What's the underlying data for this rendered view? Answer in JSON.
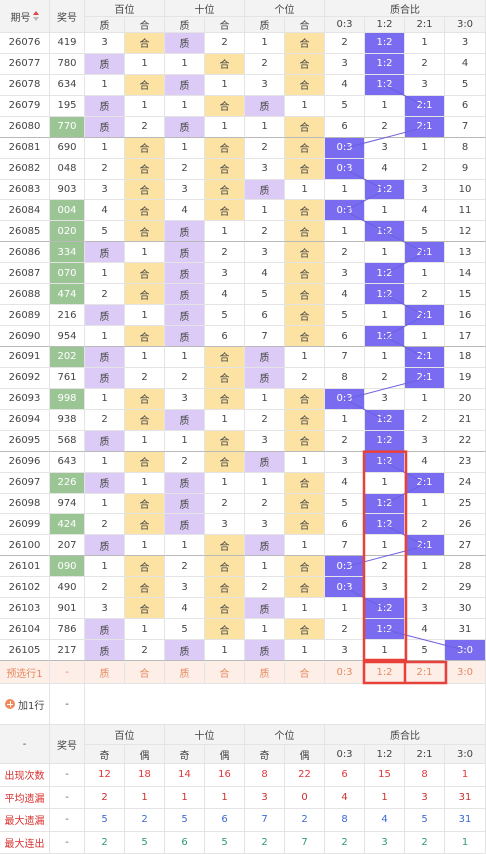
{
  "header": {
    "period": "期号",
    "number": "奖号",
    "groups": [
      "百位",
      "十位",
      "个位",
      "质合比"
    ],
    "subheaders": [
      "质",
      "合",
      "质",
      "合",
      "质",
      "合",
      "0:3",
      "1:2",
      "2:1",
      "3:0"
    ]
  },
  "rows": [
    [
      "26076",
      "419",
      "3",
      "合",
      "质",
      "2",
      "1",
      "合",
      "2",
      "1:2",
      "1",
      "3"
    ],
    [
      "26077",
      "780",
      "质",
      "1",
      "1",
      "合",
      "2",
      "合",
      "3",
      "1:2",
      "2",
      "4"
    ],
    [
      "26078",
      "634",
      "1",
      "合",
      "质",
      "1",
      "3",
      "合",
      "4",
      "1:2",
      "3",
      "5"
    ],
    [
      "26079",
      "195",
      "质",
      "1",
      "1",
      "合",
      "质",
      "1",
      "5",
      "1",
      "2:1",
      "6"
    ],
    [
      "26080",
      "770",
      "质",
      "2",
      "质",
      "1",
      "1",
      "合",
      "6",
      "2",
      "2:1",
      "7"
    ],
    [
      "26081",
      "690",
      "1",
      "合",
      "1",
      "合",
      "2",
      "合",
      "0:3",
      "3",
      "1",
      "8"
    ],
    [
      "26082",
      "048",
      "2",
      "合",
      "2",
      "合",
      "3",
      "合",
      "0:3",
      "4",
      "2",
      "9"
    ],
    [
      "26083",
      "903",
      "3",
      "合",
      "3",
      "合",
      "质",
      "1",
      "1",
      "1:2",
      "3",
      "10"
    ],
    [
      "26084",
      "004",
      "4",
      "合",
      "4",
      "合",
      "1",
      "合",
      "0:3",
      "1",
      "4",
      "11"
    ],
    [
      "26085",
      "020",
      "5",
      "合",
      "质",
      "1",
      "2",
      "合",
      "1",
      "1:2",
      "5",
      "12"
    ],
    [
      "26086",
      "334",
      "质",
      "1",
      "质",
      "2",
      "3",
      "合",
      "2",
      "1",
      "2:1",
      "13"
    ],
    [
      "26087",
      "070",
      "1",
      "合",
      "质",
      "3",
      "4",
      "合",
      "3",
      "1:2",
      "1",
      "14"
    ],
    [
      "26088",
      "474",
      "2",
      "合",
      "质",
      "4",
      "5",
      "合",
      "4",
      "1:2",
      "2",
      "15"
    ],
    [
      "26089",
      "216",
      "质",
      "1",
      "质",
      "5",
      "6",
      "合",
      "5",
      "1",
      "2:1",
      "16"
    ],
    [
      "26090",
      "954",
      "1",
      "合",
      "质",
      "6",
      "7",
      "合",
      "6",
      "1:2",
      "1",
      "17"
    ],
    [
      "26091",
      "202",
      "质",
      "1",
      "1",
      "合",
      "质",
      "1",
      "7",
      "1",
      "2:1",
      "18"
    ],
    [
      "26092",
      "761",
      "质",
      "2",
      "2",
      "合",
      "质",
      "2",
      "8",
      "2",
      "2:1",
      "19"
    ],
    [
      "26093",
      "998",
      "1",
      "合",
      "3",
      "合",
      "1",
      "合",
      "0:3",
      "3",
      "1",
      "20"
    ],
    [
      "26094",
      "938",
      "2",
      "合",
      "质",
      "1",
      "2",
      "合",
      "1",
      "1:2",
      "2",
      "21"
    ],
    [
      "26095",
      "568",
      "质",
      "1",
      "1",
      "合",
      "3",
      "合",
      "2",
      "1:2",
      "3",
      "22"
    ],
    [
      "26096",
      "643",
      "1",
      "合",
      "2",
      "合",
      "质",
      "1",
      "3",
      "1:2",
      "4",
      "23"
    ],
    [
      "26097",
      "226",
      "质",
      "1",
      "质",
      "1",
      "1",
      "合",
      "4",
      "1",
      "2:1",
      "24"
    ],
    [
      "26098",
      "974",
      "1",
      "合",
      "质",
      "2",
      "2",
      "合",
      "5",
      "1:2",
      "1",
      "25"
    ],
    [
      "26099",
      "424",
      "2",
      "合",
      "质",
      "3",
      "3",
      "合",
      "6",
      "1:2",
      "2",
      "26"
    ],
    [
      "26100",
      "207",
      "质",
      "1",
      "1",
      "合",
      "质",
      "1",
      "7",
      "1",
      "2:1",
      "27"
    ],
    [
      "26101",
      "090",
      "1",
      "合",
      "2",
      "合",
      "1",
      "合",
      "0:3",
      "2",
      "1",
      "28"
    ],
    [
      "26102",
      "490",
      "2",
      "合",
      "3",
      "合",
      "2",
      "合",
      "0:3",
      "3",
      "2",
      "29"
    ],
    [
      "26103",
      "901",
      "3",
      "合",
      "4",
      "合",
      "质",
      "1",
      "1",
      "1:2",
      "3",
      "30"
    ],
    [
      "26104",
      "786",
      "质",
      "1",
      "5",
      "合",
      "1",
      "合",
      "2",
      "1:2",
      "4",
      "31"
    ],
    [
      "26105",
      "217",
      "质",
      "2",
      "质",
      "1",
      "质",
      "1",
      "3",
      "1",
      "5",
      "3:0"
    ]
  ],
  "preselect": [
    "预选行1",
    "-",
    "质",
    "合",
    "质",
    "合",
    "质",
    "合",
    "0:3",
    "1:2",
    "2:1",
    "3:0"
  ],
  "add_row": {
    "label": "加1行",
    "value": "-"
  },
  "stats_header": {
    "first": "-",
    "number": "奖号",
    "groups": [
      "百位",
      "十位",
      "个位",
      "质合比"
    ],
    "subheaders": [
      "奇",
      "偶",
      "奇",
      "偶",
      "奇",
      "偶",
      "0:3",
      "1:2",
      "2:1",
      "3:0"
    ]
  },
  "stats": [
    [
      "出现次数",
      "-",
      "12",
      "18",
      "14",
      "16",
      "8",
      "22",
      "6",
      "15",
      "8",
      "1"
    ],
    [
      "平均遗漏",
      "-",
      "2",
      "1",
      "1",
      "1",
      "3",
      "0",
      "4",
      "1",
      "3",
      "31"
    ],
    [
      "最大遗漏",
      "-",
      "5",
      "2",
      "5",
      "6",
      "7",
      "2",
      "8",
      "4",
      "5",
      "31"
    ],
    [
      "最大连出",
      "-",
      "2",
      "5",
      "6",
      "5",
      "2",
      "7",
      "2",
      "3",
      "2",
      "1"
    ]
  ]
}
